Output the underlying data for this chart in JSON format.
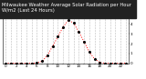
{
  "title": "Milwaukee Weather Average Solar Radiation per Hour W/m2 (Last 24 Hours)",
  "hours": [
    0,
    1,
    2,
    3,
    4,
    5,
    6,
    7,
    8,
    9,
    10,
    11,
    12,
    13,
    14,
    15,
    16,
    17,
    18,
    19,
    20,
    21,
    22,
    23
  ],
  "values": [
    0,
    0,
    0,
    0,
    0,
    0,
    2,
    20,
    80,
    175,
    270,
    370,
    440,
    410,
    320,
    220,
    115,
    45,
    8,
    0,
    0,
    0,
    0,
    0
  ],
  "line_color": "#ff0000",
  "dot_color": "#000000",
  "grid_color": "#aaaaaa",
  "bg_color": "#ffffff",
  "title_bg_color": "#222222",
  "title_text_color": "#ffffff",
  "ylim": [
    0,
    500
  ],
  "ytick_values": [
    0,
    100,
    200,
    300,
    400,
    500
  ],
  "ytick_labels": [
    "0",
    "1",
    "2",
    "3",
    "4",
    "5"
  ],
  "xlim": [
    -0.5,
    23.5
  ],
  "title_fontsize": 3.8,
  "axis_fontsize": 3.0,
  "linewidth": 0.7,
  "markersize": 1.2,
  "grid_linewidth": 0.4,
  "grid_alpha": 0.8,
  "xtick_show": [
    0,
    2,
    4,
    6,
    8,
    10,
    12,
    14,
    16,
    18,
    20,
    22
  ]
}
